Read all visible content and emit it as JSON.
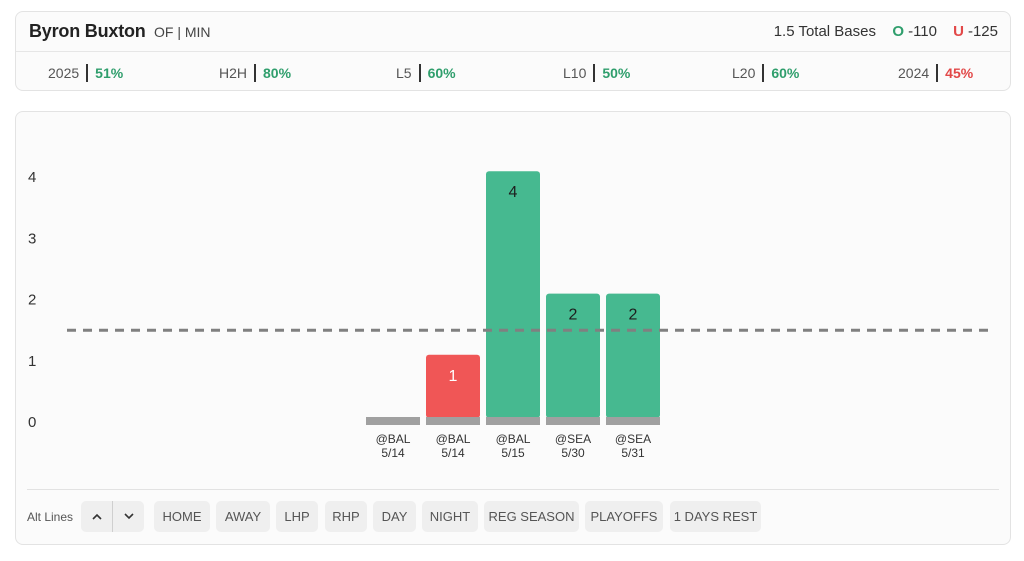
{
  "player": {
    "name": "Byron Buxton",
    "position_team": "OF | MIN",
    "prop": "1.5 Total Bases",
    "over_label": "O",
    "over_odds": "-110",
    "under_label": "U",
    "under_odds": "-125"
  },
  "stats": [
    {
      "label": "2025",
      "value": "51%"
    },
    {
      "label": "H2H",
      "value": "80%"
    },
    {
      "label": "L5",
      "value": "60%"
    },
    {
      "label": "L10",
      "value": "50%"
    },
    {
      "label": "L20",
      "value": "60%"
    },
    {
      "label": "2024",
      "value": "45%"
    }
  ],
  "colors": {
    "hit": "#46b990",
    "miss": "#f05656",
    "base": "#a0a0a0",
    "line": "#808080",
    "good_text": "#2f9e6c",
    "bad_text": "#e24848"
  },
  "chart_data": {
    "type": "bar",
    "y_ticks": [
      0,
      1,
      2,
      3,
      4
    ],
    "ylim": [
      0,
      4
    ],
    "line_value": 1.5,
    "categories": [
      {
        "top": "@BAL",
        "bottom": "5/14"
      },
      {
        "top": "@BAL",
        "bottom": "5/14"
      },
      {
        "top": "@BAL",
        "bottom": "5/15"
      },
      {
        "top": "@SEA",
        "bottom": "5/30"
      },
      {
        "top": "@SEA",
        "bottom": "5/31"
      }
    ],
    "values": [
      0,
      1,
      4,
      2,
      2
    ],
    "value_labels": [
      "",
      "1",
      "4",
      "2",
      "2"
    ],
    "grid": false
  },
  "filters": {
    "alt_lines_label": "Alt Lines",
    "buttons": [
      "HOME",
      "AWAY",
      "LHP",
      "RHP",
      "DAY",
      "NIGHT",
      "REG SEASON",
      "PLAYOFFS",
      "1 DAYS REST"
    ]
  }
}
